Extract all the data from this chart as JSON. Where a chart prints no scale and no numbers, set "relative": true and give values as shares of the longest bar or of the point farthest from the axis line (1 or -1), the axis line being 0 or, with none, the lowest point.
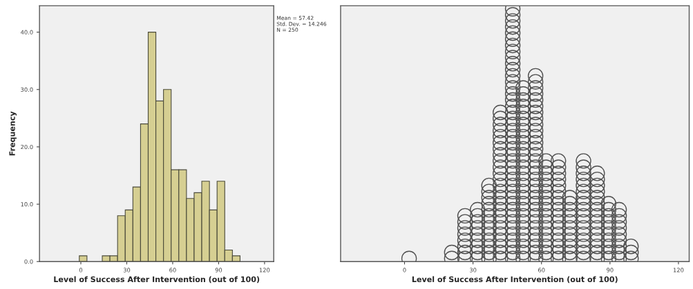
{
  "chart_data": [
    {
      "type": "histogram",
      "xlabel": "Level of Success After Intervention (out of 100)",
      "ylabel": "Frequency",
      "bins": [
        -1,
        4,
        9,
        14,
        19,
        24,
        29,
        34,
        39,
        44,
        49,
        54,
        59,
        64,
        69,
        74,
        79,
        84,
        89,
        94,
        99,
        104
      ],
      "values": [
        1,
        0,
        0,
        1,
        1,
        8,
        9,
        13,
        24,
        40,
        28,
        30,
        16,
        16,
        11,
        12,
        14,
        9,
        14,
        2,
        1
      ],
      "color": "#d6cf92",
      "xlim": [
        -27,
        126
      ],
      "xticks": [
        0,
        30,
        60,
        90,
        120
      ],
      "ylim": [
        0,
        44.6
      ],
      "yticks": [
        {
          "value": 0,
          "label": "0.0"
        },
        {
          "value": 10,
          "label": "10.0"
        },
        {
          "value": 20,
          "label": "20.0"
        },
        {
          "value": 30,
          "label": "30.0"
        },
        {
          "value": 40,
          "label": "40.0"
        }
      ],
      "grid": false,
      "annotations": [
        "Mean = 57.42",
        "Std. Dev. = 14.246",
        "N = 250"
      ]
    },
    {
      "type": "scatter",
      "xlabel": "Level of Success After Intervention (out of 100)",
      "relative": true,
      "series": [
        {
          "color": "#505050",
          "x": [
            2
          ],
          "values": [
            0.012
          ]
        },
        {
          "color": "#505050",
          "x": [
            20.7,
            20.7
          ],
          "values": [
            0.012,
            0.036
          ]
        },
        {
          "color": "#505050",
          "x": [
            26.5,
            26.5,
            26.5,
            26.5,
            26.5,
            26.5,
            26.5,
            26.5
          ],
          "values": [
            0.012,
            0.036,
            0.06,
            0.084,
            0.108,
            0.133,
            0.157,
            0.181
          ]
        },
        {
          "color": "#505050",
          "x": [
            32,
            32,
            32,
            32,
            32,
            32,
            32,
            32,
            32
          ],
          "values": [
            0.012,
            0.036,
            0.06,
            0.084,
            0.108,
            0.133,
            0.157,
            0.181,
            0.205
          ]
        },
        {
          "color": "#505050",
          "x": [
            37,
            37,
            37,
            37,
            37,
            37,
            37,
            37,
            37,
            37,
            37,
            37,
            37
          ],
          "values": [
            0.012,
            0.036,
            0.06,
            0.084,
            0.108,
            0.133,
            0.157,
            0.181,
            0.205,
            0.229,
            0.253,
            0.277,
            0.301
          ]
        },
        {
          "color": "#505050",
          "x": [
            42,
            42,
            42,
            42,
            42,
            42,
            42,
            42,
            42,
            42,
            42,
            42,
            42,
            42,
            42,
            42,
            42,
            42,
            42,
            42,
            42,
            42,
            42,
            42,
            42
          ],
          "values": [
            0.012,
            0.036,
            0.06,
            0.084,
            0.108,
            0.133,
            0.157,
            0.181,
            0.205,
            0.229,
            0.253,
            0.277,
            0.301,
            0.325,
            0.349,
            0.373,
            0.398,
            0.422,
            0.446,
            0.47,
            0.494,
            0.518,
            0.542,
            0.566,
            0.59
          ]
        },
        {
          "color": "#505050",
          "x": [
            47.4,
            47.4,
            47.4,
            47.4,
            47.4,
            47.4,
            47.4,
            47.4,
            47.4,
            47.4,
            47.4,
            47.4,
            47.4,
            47.4,
            47.4,
            47.4,
            47.4,
            47.4,
            47.4,
            47.4,
            47.4,
            47.4,
            47.4,
            47.4,
            47.4,
            47.4,
            47.4,
            47.4,
            47.4,
            47.4,
            47.4,
            47.4,
            47.4,
            47.4,
            47.4,
            47.4,
            47.4,
            47.4,
            47.4,
            47.4,
            47.4,
            47.4
          ],
          "values": [
            0.012,
            0.036,
            0.06,
            0.084,
            0.108,
            0.133,
            0.157,
            0.181,
            0.205,
            0.229,
            0.253,
            0.277,
            0.301,
            0.325,
            0.349,
            0.373,
            0.398,
            0.422,
            0.446,
            0.47,
            0.494,
            0.518,
            0.542,
            0.566,
            0.59,
            0.614,
            0.639,
            0.663,
            0.687,
            0.711,
            0.735,
            0.759,
            0.783,
            0.807,
            0.831,
            0.855,
            0.88,
            0.904,
            0.928,
            0.952,
            0.976,
            1.0
          ]
        },
        {
          "color": "#505050",
          "x": [
            52,
            52,
            52,
            52,
            52,
            52,
            52,
            52,
            52,
            52,
            52,
            52,
            52,
            52,
            52,
            52,
            52,
            52,
            52,
            52,
            52,
            52,
            52,
            52,
            52,
            52,
            52,
            52,
            52
          ],
          "values": [
            0.012,
            0.036,
            0.06,
            0.084,
            0.108,
            0.133,
            0.157,
            0.181,
            0.205,
            0.229,
            0.253,
            0.277,
            0.301,
            0.325,
            0.349,
            0.373,
            0.398,
            0.422,
            0.446,
            0.47,
            0.494,
            0.518,
            0.542,
            0.566,
            0.59,
            0.614,
            0.639,
            0.663,
            0.687
          ]
        },
        {
          "color": "#505050",
          "x": [
            57.4,
            57.4,
            57.4,
            57.4,
            57.4,
            57.4,
            57.4,
            57.4,
            57.4,
            57.4,
            57.4,
            57.4,
            57.4,
            57.4,
            57.4,
            57.4,
            57.4,
            57.4,
            57.4,
            57.4,
            57.4,
            57.4,
            57.4,
            57.4,
            57.4,
            57.4,
            57.4,
            57.4,
            57.4,
            57.4,
            57.4
          ],
          "values": [
            0.012,
            0.036,
            0.06,
            0.084,
            0.108,
            0.133,
            0.157,
            0.181,
            0.205,
            0.229,
            0.253,
            0.277,
            0.301,
            0.325,
            0.349,
            0.373,
            0.398,
            0.422,
            0.446,
            0.47,
            0.494,
            0.518,
            0.542,
            0.566,
            0.59,
            0.614,
            0.639,
            0.663,
            0.687,
            0.711,
            0.735
          ]
        },
        {
          "color": "#505050",
          "x": [
            62,
            62,
            62,
            62,
            62,
            62,
            62,
            62,
            62,
            62,
            62,
            62,
            62,
            62,
            62,
            62,
            62
          ],
          "values": [
            0.012,
            0.036,
            0.06,
            0.084,
            0.108,
            0.133,
            0.157,
            0.181,
            0.205,
            0.229,
            0.253,
            0.277,
            0.301,
            0.325,
            0.349,
            0.373,
            0.398
          ]
        },
        {
          "color": "#505050",
          "x": [
            67.4,
            67.4,
            67.4,
            67.4,
            67.4,
            67.4,
            67.4,
            67.4,
            67.4,
            67.4,
            67.4,
            67.4,
            67.4,
            67.4,
            67.4,
            67.4,
            67.4
          ],
          "values": [
            0.012,
            0.036,
            0.06,
            0.084,
            0.108,
            0.133,
            0.157,
            0.181,
            0.205,
            0.229,
            0.253,
            0.277,
            0.301,
            0.325,
            0.349,
            0.373,
            0.398
          ]
        },
        {
          "color": "#505050",
          "x": [
            72.4,
            72.4,
            72.4,
            72.4,
            72.4,
            72.4,
            72.4,
            72.4,
            72.4,
            72.4,
            72.4
          ],
          "values": [
            0.012,
            0.036,
            0.06,
            0.084,
            0.108,
            0.133,
            0.157,
            0.181,
            0.205,
            0.229,
            0.253
          ]
        },
        {
          "color": "#505050",
          "x": [
            78.4,
            78.4,
            78.4,
            78.4,
            78.4,
            78.4,
            78.4,
            78.4,
            78.4,
            78.4,
            78.4,
            78.4,
            78.4,
            78.4,
            78.4,
            78.4,
            78.4
          ],
          "values": [
            0.012,
            0.036,
            0.06,
            0.084,
            0.108,
            0.133,
            0.157,
            0.181,
            0.205,
            0.229,
            0.253,
            0.277,
            0.301,
            0.325,
            0.349,
            0.373,
            0.398
          ]
        },
        {
          "color": "#505050",
          "x": [
            84.4,
            84.4,
            84.4,
            84.4,
            84.4,
            84.4,
            84.4,
            84.4,
            84.4,
            84.4,
            84.4,
            84.4,
            84.4,
            84.4,
            84.4
          ],
          "values": [
            0.012,
            0.036,
            0.06,
            0.084,
            0.108,
            0.133,
            0.157,
            0.181,
            0.205,
            0.229,
            0.253,
            0.277,
            0.301,
            0.325,
            0.349
          ]
        },
        {
          "color": "#505050",
          "x": [
            89.4,
            89.4,
            89.4,
            89.4,
            89.4,
            89.4,
            89.4,
            89.4,
            89.4,
            89.4
          ],
          "values": [
            0.012,
            0.036,
            0.06,
            0.084,
            0.108,
            0.133,
            0.157,
            0.181,
            0.205,
            0.229
          ]
        },
        {
          "color": "#505050",
          "x": [
            94,
            94,
            94,
            94,
            94,
            94,
            94,
            94,
            94
          ],
          "values": [
            0.012,
            0.036,
            0.06,
            0.084,
            0.108,
            0.133,
            0.157,
            0.181,
            0.205
          ]
        },
        {
          "color": "#505050",
          "x": [
            99.2,
            99.2,
            99.2
          ],
          "values": [
            0.012,
            0.036,
            0.06
          ]
        }
      ],
      "marker": "circle",
      "xlim": [
        -28,
        124.7
      ],
      "xticks": [
        0,
        30,
        60,
        90,
        120
      ],
      "tick_labels": "x",
      "grid": false
    }
  ]
}
